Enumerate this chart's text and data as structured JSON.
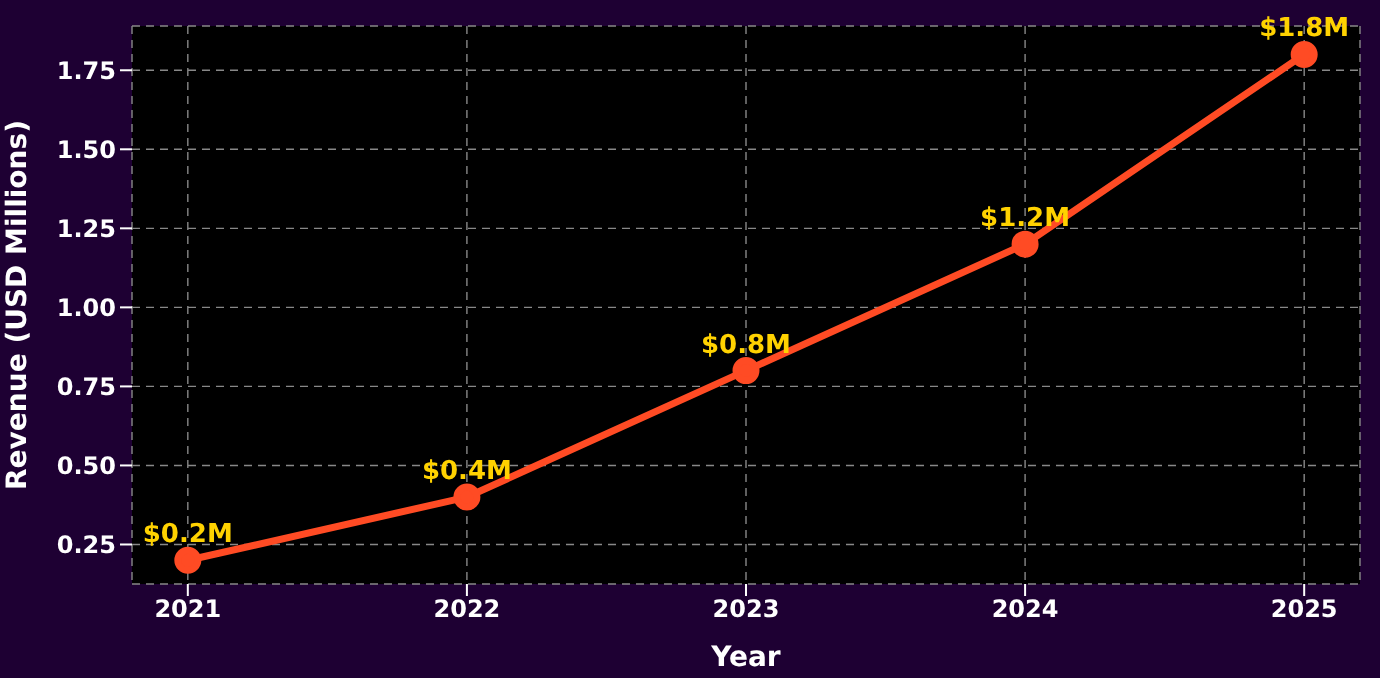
{
  "chart_data": {
    "type": "line",
    "xlabel": "Year",
    "ylabel": "Revenue (USD Millions)",
    "x": [
      2021,
      2022,
      2023,
      2024,
      2025
    ],
    "series": [
      {
        "color": "#ff4b24",
        "values": [
          0.2,
          0.4,
          0.8,
          1.2,
          1.8
        ],
        "value_labels": [
          "$0.2M",
          "$0.4M",
          "$0.8M",
          "$1.2M",
          "$1.8M"
        ]
      }
    ],
    "xlim": [
      2020.8,
      2025.2
    ],
    "xticks": [
      2021,
      2022,
      2023,
      2024,
      2025
    ],
    "ylim": [
      0.125,
      1.89
    ],
    "yticks": [
      {
        "value": 0.25,
        "label": "0.25"
      },
      {
        "value": 0.5,
        "label": "0.50"
      },
      {
        "value": 0.75,
        "label": "0.75"
      },
      {
        "value": 1,
        "label": "1.00"
      },
      {
        "value": 1.25,
        "label": "1.25"
      },
      {
        "value": 1.5,
        "label": "1.50"
      },
      {
        "value": 1.75,
        "label": "1.75"
      }
    ],
    "grid": true,
    "marker": "circle",
    "line_style": "solid"
  }
}
